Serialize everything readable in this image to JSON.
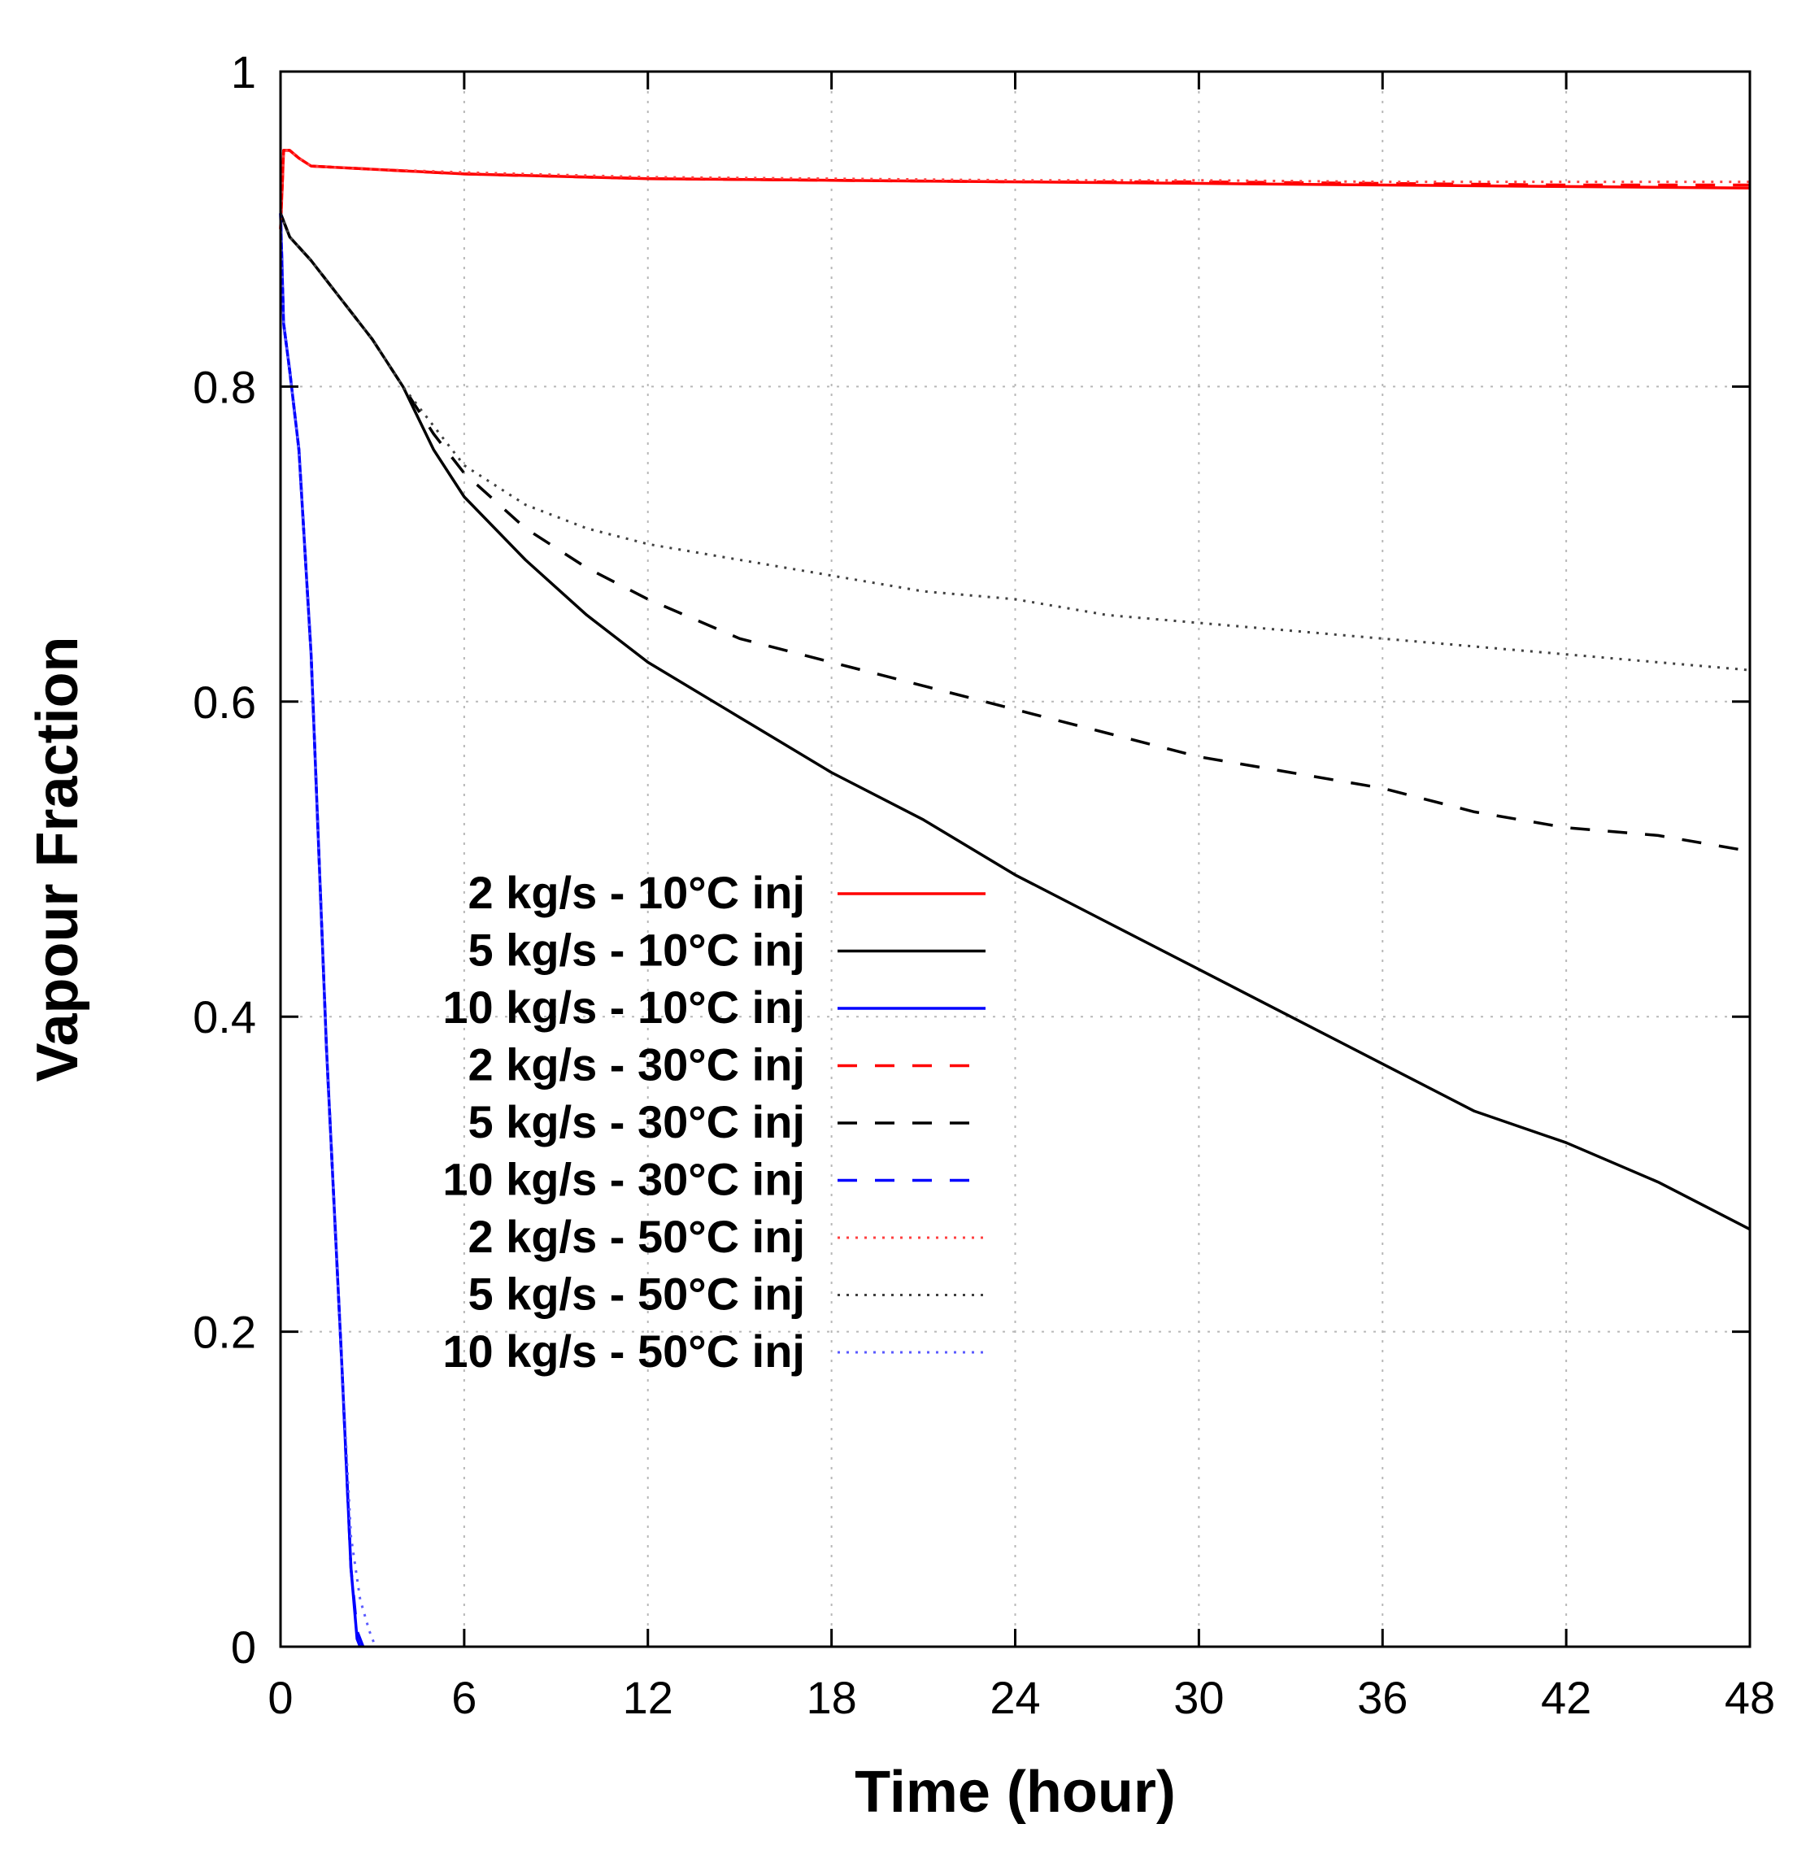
{
  "chart_data": {
    "type": "line",
    "title": "",
    "xlabel": "Time (hour)",
    "ylabel": "Vapour Fraction",
    "xlim": [
      0,
      48
    ],
    "ylim": [
      0,
      1
    ],
    "xticks": [
      0,
      6,
      12,
      18,
      24,
      30,
      36,
      42,
      48
    ],
    "xtick_labels": [
      "0",
      "6",
      "12",
      "18",
      "24",
      "30",
      "36",
      "42",
      "48"
    ],
    "yticks": [
      0,
      0.2,
      0.4,
      0.6,
      0.8,
      1
    ],
    "ytick_labels": [
      "0",
      "0.2",
      "0.4",
      "0.6",
      "0.8",
      "1"
    ],
    "grid": true,
    "legend_position": "center-left",
    "series": [
      {
        "name": "2 kg/s - 10°C inj",
        "color": "#ff0000",
        "style": "solid",
        "x": [
          0,
          0.1,
          0.3,
          0.6,
          1,
          3,
          6,
          12,
          18,
          24,
          30,
          36,
          42,
          48
        ],
        "y": [
          0.9,
          0.95,
          0.95,
          0.945,
          0.94,
          0.938,
          0.935,
          0.932,
          0.931,
          0.93,
          0.929,
          0.928,
          0.927,
          0.926
        ]
      },
      {
        "name": "5 kg/s - 10°C inj",
        "color": "#000000",
        "style": "solid",
        "x": [
          0,
          0.3,
          1,
          2,
          3,
          4,
          5,
          6,
          8,
          10,
          12,
          15,
          18,
          21,
          24,
          27,
          30,
          33,
          36,
          39,
          42,
          45,
          48
        ],
        "y": [
          0.91,
          0.895,
          0.88,
          0.855,
          0.83,
          0.8,
          0.76,
          0.73,
          0.69,
          0.655,
          0.625,
          0.59,
          0.555,
          0.525,
          0.49,
          0.46,
          0.43,
          0.4,
          0.37,
          0.34,
          0.32,
          0.295,
          0.265
        ]
      },
      {
        "name": "10 kg/s - 10°C inj",
        "color": "#0000ff",
        "style": "solid",
        "x": [
          0,
          0.1,
          0.3,
          0.6,
          1,
          1.5,
          2,
          2.3,
          2.5,
          2.6
        ],
        "y": [
          0.91,
          0.84,
          0.81,
          0.76,
          0.63,
          0.38,
          0.18,
          0.05,
          0.005,
          0
        ]
      },
      {
        "name": "2 kg/s - 30°C inj",
        "color": "#ff0000",
        "style": "dashed",
        "x": [
          0,
          0.1,
          0.3,
          0.6,
          1,
          3,
          6,
          12,
          18,
          24,
          30,
          36,
          42,
          48
        ],
        "y": [
          0.9,
          0.95,
          0.95,
          0.945,
          0.94,
          0.938,
          0.935,
          0.932,
          0.931,
          0.93,
          0.93,
          0.929,
          0.928,
          0.928
        ]
      },
      {
        "name": "5 kg/s - 30°C inj",
        "color": "#000000",
        "style": "dashed",
        "x": [
          0,
          0.3,
          1,
          2,
          3,
          4,
          5,
          6,
          8,
          10,
          12,
          15,
          18,
          21,
          24,
          27,
          30,
          33,
          36,
          39,
          42,
          45,
          48
        ],
        "y": [
          0.91,
          0.895,
          0.88,
          0.855,
          0.83,
          0.8,
          0.77,
          0.745,
          0.71,
          0.685,
          0.665,
          0.64,
          0.625,
          0.61,
          0.595,
          0.58,
          0.565,
          0.555,
          0.545,
          0.53,
          0.52,
          0.515,
          0.505
        ]
      },
      {
        "name": "10 kg/s - 30°C inj",
        "color": "#0000ff",
        "style": "dashed",
        "x": [
          0,
          0.1,
          0.3,
          0.6,
          1,
          1.5,
          2,
          2.3,
          2.5,
          2.7
        ],
        "y": [
          0.91,
          0.84,
          0.81,
          0.76,
          0.63,
          0.38,
          0.18,
          0.05,
          0.01,
          0
        ]
      },
      {
        "name": "2 kg/s - 50°C inj",
        "color": "#ff4040",
        "style": "dotted",
        "x": [
          0,
          0.1,
          0.3,
          0.6,
          1,
          3,
          6,
          12,
          18,
          24,
          30,
          36,
          42,
          48
        ],
        "y": [
          0.9,
          0.95,
          0.95,
          0.945,
          0.94,
          0.938,
          0.936,
          0.933,
          0.932,
          0.931,
          0.931,
          0.93,
          0.93,
          0.93
        ]
      },
      {
        "name": "5 kg/s - 50°C inj",
        "color": "#404040",
        "style": "dotted",
        "x": [
          0,
          0.3,
          1,
          2,
          3,
          4,
          5,
          6,
          8,
          10,
          12,
          15,
          18,
          21,
          24,
          27,
          30,
          33,
          36,
          39,
          42,
          45,
          48
        ],
        "y": [
          0.91,
          0.895,
          0.88,
          0.855,
          0.83,
          0.8,
          0.775,
          0.75,
          0.725,
          0.71,
          0.7,
          0.69,
          0.68,
          0.67,
          0.665,
          0.655,
          0.65,
          0.645,
          0.64,
          0.635,
          0.63,
          0.625,
          0.62
        ]
      },
      {
        "name": "10 kg/s - 50°C inj",
        "color": "#5a5aff",
        "style": "dotted",
        "x": [
          0,
          0.1,
          0.3,
          0.6,
          1,
          1.5,
          2,
          2.3,
          2.6,
          2.9,
          3.1
        ],
        "y": [
          0.91,
          0.84,
          0.81,
          0.76,
          0.63,
          0.38,
          0.18,
          0.07,
          0.03,
          0.01,
          0
        ]
      }
    ]
  }
}
